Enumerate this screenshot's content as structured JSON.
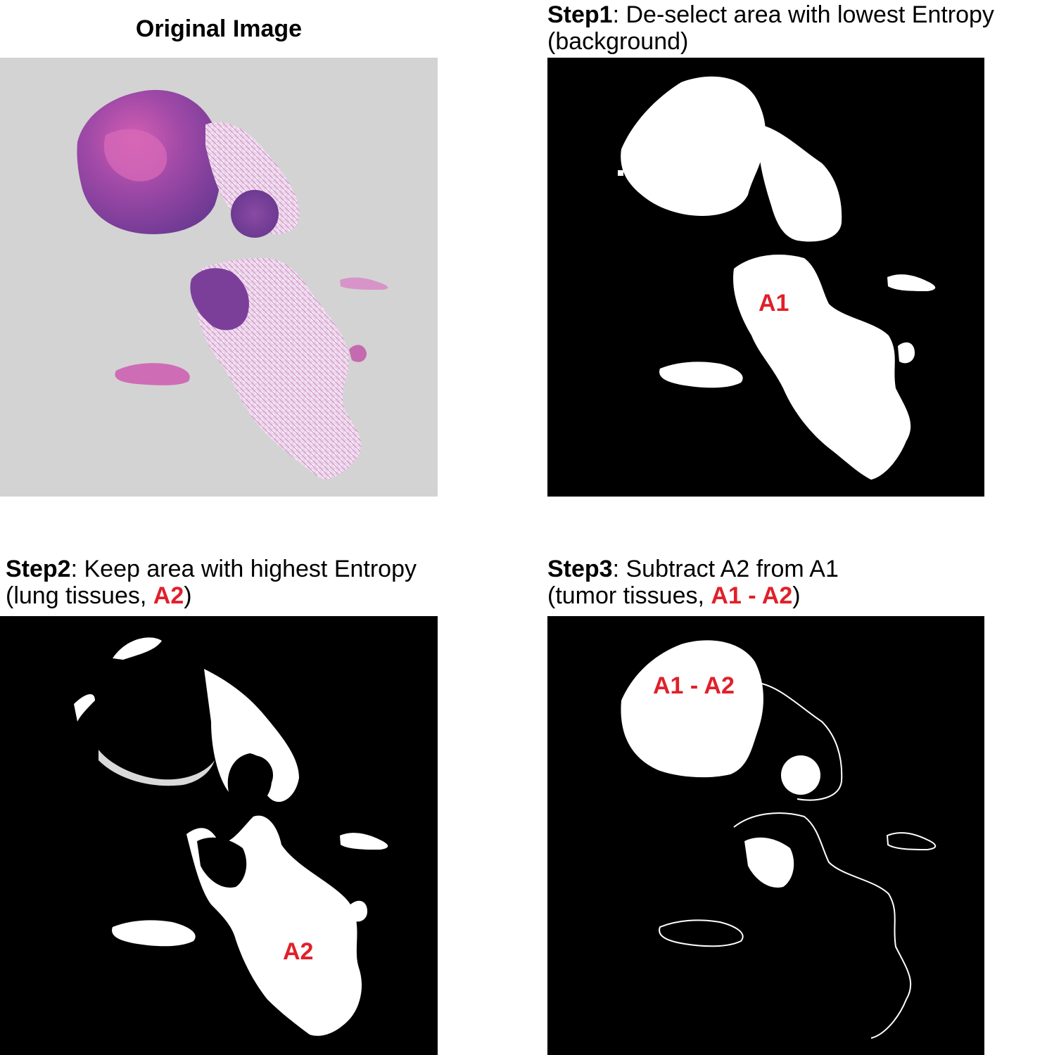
{
  "panels": {
    "original": {
      "title": "Original Image"
    },
    "step1": {
      "title_bold": "Step1",
      "title_rest": ": De-select area with lowest Entropy",
      "title_line2": "(background)",
      "region_label": "A1"
    },
    "step2": {
      "title_bold": "Step2",
      "title_rest": ": Keep area with highest Entropy",
      "title_line2_pre": "(lung tissues, ",
      "title_line2_red": "A2",
      "title_line2_post": ")",
      "region_label": "A2"
    },
    "step3": {
      "title_bold": "Step3",
      "title_rest": ": Subtract A2 from A1",
      "title_line2_pre": "(tumor tissues, ",
      "title_line2_red": "A1 - A2",
      "title_line2_post": ")",
      "region_label": "A1 - A2"
    }
  },
  "colors": {
    "label_red": "#e0202a",
    "slide_background": "#d3d3d3",
    "mask_background": "#000000",
    "mask_foreground": "#ffffff",
    "tissue_dark": "#7b3f9a",
    "tissue_pink": "#d05fb0",
    "tissue_light": "#e9c8e4"
  }
}
